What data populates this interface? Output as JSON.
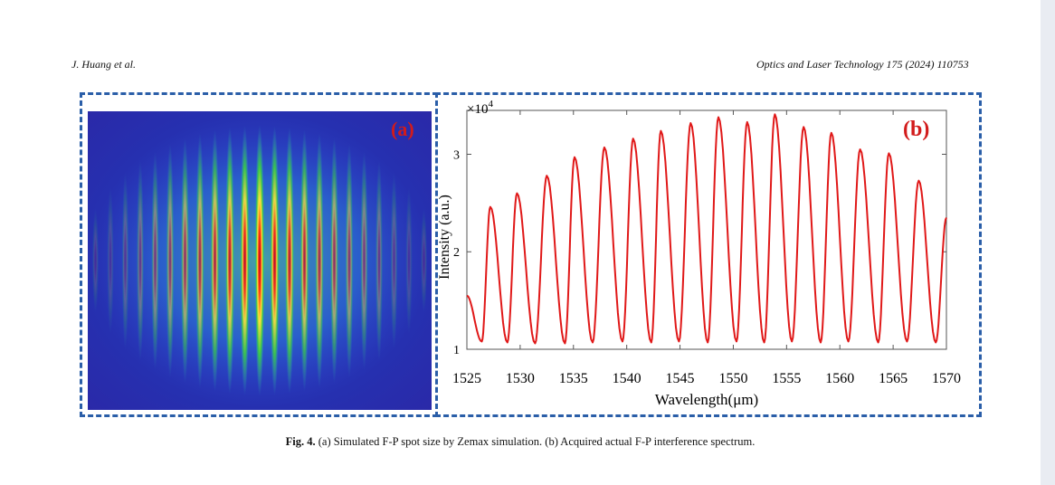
{
  "header": {
    "authors": "J. Huang et al.",
    "journal": "Optics and Laser Technology 175 (2024) 110753"
  },
  "figure": {
    "panel_a_label": "(a)",
    "panel_b_label": "(b)",
    "caption_label": "Fig. 4.",
    "caption_text": " (a) Simulated F-P spot size by Zemax simulation. (b) Acquired actual F-P interference spectrum."
  },
  "colors": {
    "frame": "#2a5ea8",
    "label": "#d21b1b",
    "curve": "#e01818"
  },
  "chart_data": {
    "type": "line",
    "xlabel": "Wavelength(μm)",
    "ylabel": "Intensity (a.u.)",
    "y_multiplier": "×10",
    "y_multiplier_exp": "4",
    "xlim": [
      1525,
      1570
    ],
    "ylim": [
      1,
      3.45
    ],
    "x_ticks": [
      1525,
      1530,
      1535,
      1540,
      1545,
      1550,
      1555,
      1560,
      1565,
      1570
    ],
    "x_tick_labels": [
      "1525",
      "1530",
      "1535",
      "1540",
      "1545",
      "1550",
      "1555",
      "1560",
      "1565",
      "1570"
    ],
    "y_ticks": [
      1,
      2,
      3
    ],
    "y_tick_labels": [
      "1",
      "2",
      "3"
    ],
    "grid": false,
    "series": [
      {
        "x": [
          1525.0,
          1526.4,
          1527.2,
          1528.8,
          1529.7,
          1531.4,
          1532.5,
          1534.2,
          1535.1,
          1536.8,
          1537.9,
          1539.6,
          1540.6,
          1542.3,
          1543.2,
          1544.9,
          1546.0,
          1547.6,
          1548.6,
          1550.3,
          1551.3,
          1552.9,
          1553.9,
          1555.5,
          1556.6,
          1558.2,
          1559.2,
          1560.8,
          1561.9,
          1563.6,
          1564.6,
          1566.3,
          1567.4,
          1569.0,
          1570.0
        ],
        "y": [
          1.55,
          1.08,
          2.46,
          1.07,
          2.6,
          1.06,
          2.78,
          1.06,
          2.97,
          1.07,
          3.07,
          1.08,
          3.16,
          1.07,
          3.24,
          1.08,
          3.32,
          1.07,
          3.38,
          1.08,
          3.33,
          1.07,
          3.41,
          1.08,
          3.28,
          1.07,
          3.22,
          1.08,
          3.05,
          1.07,
          3.01,
          1.08,
          2.73,
          1.07,
          2.35
        ]
      }
    ]
  }
}
